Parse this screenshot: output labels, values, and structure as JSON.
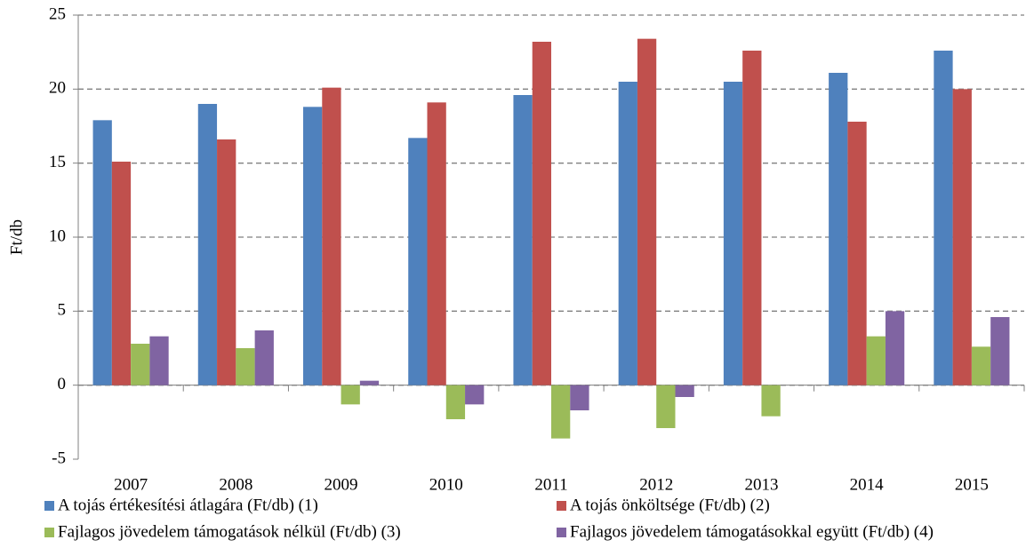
{
  "chart_data": {
    "type": "bar",
    "y_label": "Ft/db",
    "categories": [
      "2007",
      "2008",
      "2009",
      "2010",
      "2011",
      "2012",
      "2013",
      "2014",
      "2015"
    ],
    "series": [
      {
        "name": "A tojás értékesítési átlagára (Ft/db) (1)",
        "color": "#4f81bd",
        "values": [
          17.9,
          19.0,
          18.8,
          16.7,
          19.6,
          20.5,
          20.5,
          21.1,
          22.6
        ]
      },
      {
        "name": "A tojás önköltsége (Ft/db) (2)",
        "color": "#c0504d",
        "values": [
          15.1,
          16.6,
          20.1,
          19.1,
          23.2,
          23.4,
          22.6,
          17.8,
          20.0
        ]
      },
      {
        "name": "Fajlagos jövedelem támogatások nélkül (Ft/db) (3)",
        "color": "#9bbb59",
        "values": [
          2.8,
          2.5,
          -1.3,
          -2.3,
          -3.6,
          -2.9,
          -2.1,
          3.3,
          2.6
        ]
      },
      {
        "name": "Fajlagos jövedelem támogatásokkal együtt (Ft/db) (4)",
        "color": "#8064a2",
        "values": [
          3.3,
          3.7,
          0.3,
          -1.3,
          -1.7,
          -0.8,
          0.0,
          5.0,
          4.6
        ]
      }
    ],
    "ylim": [
      -5,
      25
    ],
    "yticks": [
      -5,
      0,
      5,
      10,
      15,
      20,
      25
    ],
    "grid": true,
    "legend": "bottom"
  }
}
